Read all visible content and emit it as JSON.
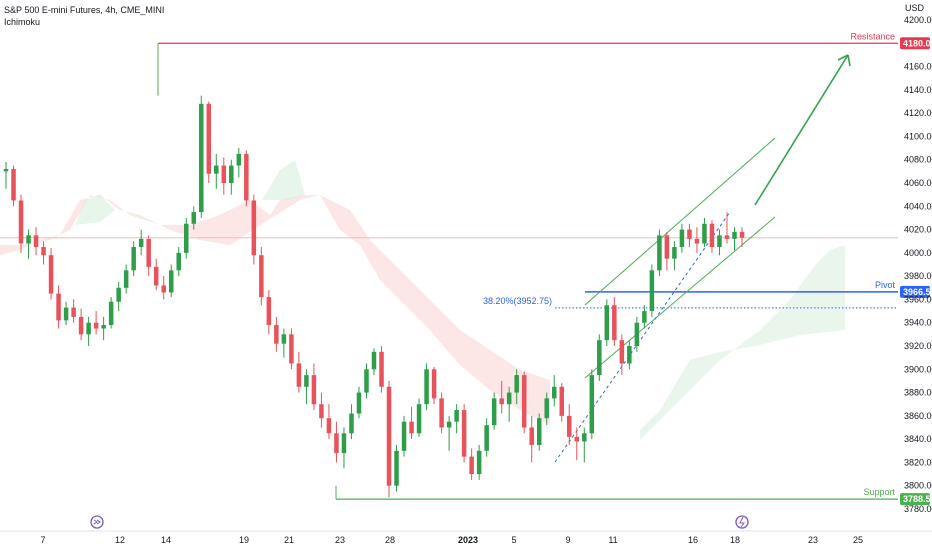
{
  "legend": {
    "title": "S&P 500 E-mini Futures, 4h, CME_MINI",
    "indicator": "Ichimoku"
  },
  "axis": {
    "currency": "USD"
  },
  "colors": {
    "up": "#26a69a",
    "down": "#ef5350",
    "up_body": "#2e9e4a",
    "down_body": "#e8525a",
    "resistance": "#e53950",
    "support": "#4caf50",
    "pivot": "#2962ff",
    "fib": "#2962ff",
    "arrow": "#33a34a",
    "channel": "#4caf50",
    "cloud_red": "#f9d2d2",
    "cloud_green": "#d9eedd"
  },
  "chart_data": {
    "type": "candlestick",
    "title": "S&P 500 E-mini Futures, 4h, CME_MINI",
    "indicator": "Ichimoku",
    "ylim": [
      3770,
      4210
    ],
    "y_ticks": [
      3780,
      3800,
      3820,
      3840,
      3860,
      3880,
      3900,
      3920,
      3940,
      3960,
      3980,
      4000,
      4020,
      4040,
      4060,
      4080,
      4100,
      4120,
      4140,
      4160,
      4180,
      4200
    ],
    "x_ticks": [
      "7",
      "12",
      "14",
      "19",
      "21",
      "23",
      "28",
      "2023",
      "5",
      "9",
      "11",
      "16",
      "18",
      "23",
      "25"
    ],
    "levels": [
      {
        "name": "Resistance",
        "value": 4180.0,
        "label": "4180.00"
      },
      {
        "name": "Pivot",
        "value": 3966.5,
        "label": "3966.50"
      },
      {
        "name": "Support",
        "value": 3788.5,
        "label": "3788.50"
      }
    ],
    "fibonacci": {
      "label": "38.20%(3952.75)",
      "value": 3952.75
    },
    "arrow": "up",
    "close_line": 4013,
    "candles": [
      [
        4070,
        4078,
        4055,
        4072
      ],
      [
        4072,
        4075,
        4040,
        4045
      ],
      [
        4045,
        4050,
        4000,
        4008
      ],
      [
        4008,
        4020,
        3995,
        4015
      ],
      [
        4015,
        4022,
        3998,
        4005
      ],
      [
        4005,
        4010,
        3990,
        3998
      ],
      [
        3998,
        4004,
        3960,
        3965
      ],
      [
        3965,
        3972,
        3935,
        3942
      ],
      [
        3942,
        3958,
        3938,
        3953
      ],
      [
        3953,
        3960,
        3940,
        3945
      ],
      [
        3945,
        3952,
        3925,
        3930
      ],
      [
        3930,
        3945,
        3920,
        3940
      ],
      [
        3940,
        3950,
        3930,
        3935
      ],
      [
        3935,
        3945,
        3925,
        3938
      ],
      [
        3938,
        3962,
        3935,
        3958
      ],
      [
        3958,
        3975,
        3950,
        3970
      ],
      [
        3970,
        3990,
        3965,
        3985
      ],
      [
        3985,
        4010,
        3980,
        4005
      ],
      [
        4005,
        4020,
        3998,
        4012
      ],
      [
        4012,
        4015,
        3980,
        3988
      ],
      [
        3988,
        3995,
        3968,
        3972
      ],
      [
        3972,
        3980,
        3960,
        3966
      ],
      [
        3966,
        3990,
        3962,
        3985
      ],
      [
        3985,
        4005,
        3980,
        4000
      ],
      [
        4000,
        4030,
        3995,
        4025
      ],
      [
        4025,
        4040,
        4020,
        4035
      ],
      [
        4035,
        4135,
        4030,
        4128
      ],
      [
        4128,
        4130,
        4060,
        4068
      ],
      [
        4068,
        4085,
        4055,
        4075
      ],
      [
        4075,
        4082,
        4050,
        4060
      ],
      [
        4060,
        4080,
        4050,
        4075
      ],
      [
        4075,
        4090,
        4065,
        4085
      ],
      [
        4085,
        4088,
        4040,
        4045
      ],
      [
        4045,
        4050,
        3990,
        3998
      ],
      [
        3998,
        4005,
        3955,
        3962
      ],
      [
        3962,
        3968,
        3930,
        3938
      ],
      [
        3938,
        3945,
        3915,
        3922
      ],
      [
        3922,
        3935,
        3910,
        3930
      ],
      [
        3930,
        3935,
        3900,
        3905
      ],
      [
        3905,
        3915,
        3880,
        3885
      ],
      [
        3885,
        3900,
        3870,
        3895
      ],
      [
        3895,
        3905,
        3865,
        3870
      ],
      [
        3870,
        3880,
        3850,
        3858
      ],
      [
        3858,
        3870,
        3840,
        3845
      ],
      [
        3845,
        3855,
        3820,
        3828
      ],
      [
        3828,
        3850,
        3815,
        3845
      ],
      [
        3845,
        3870,
        3840,
        3862
      ],
      [
        3862,
        3885,
        3858,
        3880
      ],
      [
        3880,
        3905,
        3875,
        3900
      ],
      [
        3900,
        3918,
        3895,
        3915
      ],
      [
        3915,
        3920,
        3880,
        3885
      ],
      [
        3885,
        3890,
        3790,
        3800
      ],
      [
        3800,
        3835,
        3795,
        3830
      ],
      [
        3830,
        3860,
        3825,
        3855
      ],
      [
        3855,
        3868,
        3840,
        3845
      ],
      [
        3845,
        3875,
        3842,
        3870
      ],
      [
        3870,
        3905,
        3865,
        3900
      ],
      [
        3900,
        3902,
        3870,
        3875
      ],
      [
        3875,
        3880,
        3845,
        3850
      ],
      [
        3850,
        3860,
        3830,
        3855
      ],
      [
        3855,
        3870,
        3845,
        3865
      ],
      [
        3865,
        3870,
        3820,
        3825
      ],
      [
        3825,
        3832,
        3805,
        3810
      ],
      [
        3810,
        3835,
        3805,
        3830
      ],
      [
        3830,
        3858,
        3825,
        3852
      ],
      [
        3852,
        3880,
        3848,
        3875
      ],
      [
        3875,
        3890,
        3862,
        3870
      ],
      [
        3870,
        3885,
        3855,
        3880
      ],
      [
        3880,
        3900,
        3870,
        3895
      ],
      [
        3895,
        3898,
        3845,
        3850
      ],
      [
        3850,
        3860,
        3820,
        3835
      ],
      [
        3835,
        3862,
        3830,
        3858
      ],
      [
        3858,
        3880,
        3852,
        3875
      ],
      [
        3875,
        3895,
        3868,
        3885
      ],
      [
        3885,
        3888,
        3855,
        3860
      ],
      [
        3860,
        3870,
        3835,
        3842
      ],
      [
        3842,
        3850,
        3822,
        3838
      ],
      [
        3838,
        3850,
        3820,
        3845
      ],
      [
        3845,
        3900,
        3840,
        3895
      ],
      [
        3895,
        3930,
        3890,
        3925
      ],
      [
        3925,
        3960,
        3920,
        3955
      ],
      [
        3955,
        3962,
        3920,
        3925
      ],
      [
        3925,
        3930,
        3895,
        3905
      ],
      [
        3905,
        3925,
        3900,
        3920
      ],
      [
        3920,
        3945,
        3915,
        3940
      ],
      [
        3940,
        3955,
        3935,
        3950
      ],
      [
        3950,
        3990,
        3945,
        3985
      ],
      [
        3985,
        4020,
        3980,
        4015
      ],
      [
        4015,
        4018,
        3985,
        3995
      ],
      [
        3995,
        4010,
        3985,
        4005
      ],
      [
        4005,
        4025,
        4000,
        4020
      ],
      [
        4020,
        4025,
        4005,
        4012
      ],
      [
        4012,
        4022,
        4000,
        4008
      ],
      [
        4008,
        4030,
        4005,
        4025
      ],
      [
        4025,
        4028,
        4000,
        4005
      ],
      [
        4005,
        4020,
        3998,
        4015
      ],
      [
        4015,
        4035,
        4008,
        4012
      ],
      [
        4012,
        4022,
        4002,
        4018
      ],
      [
        4018,
        4022,
        4005,
        4013
      ]
    ]
  }
}
